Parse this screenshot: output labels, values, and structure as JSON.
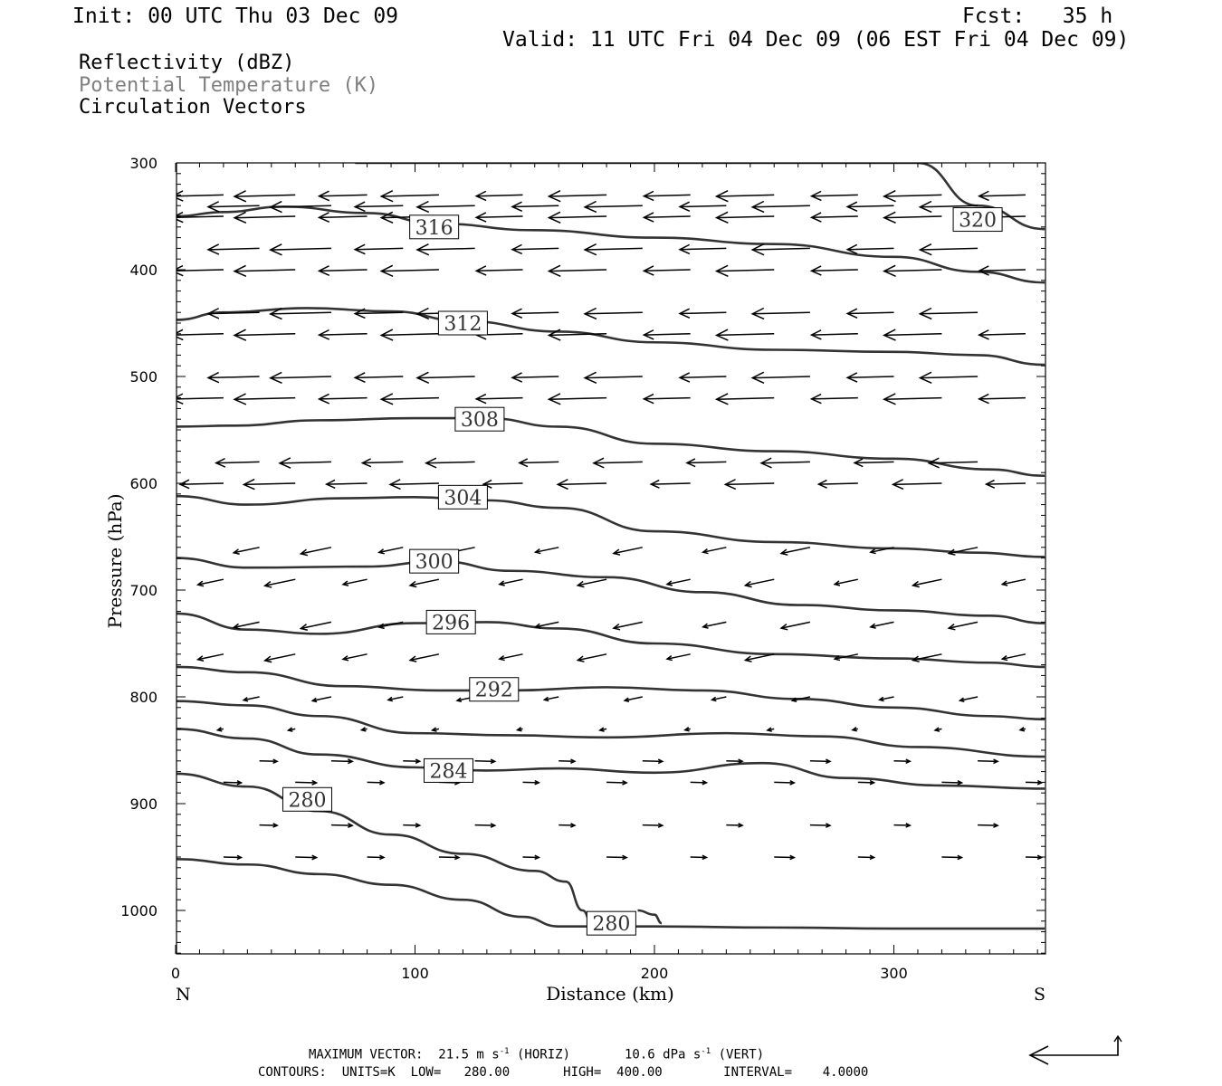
{
  "header": {
    "init": "Init: 00 UTC Thu 03 Dec 09",
    "fcst": "Fcst:   35 h",
    "valid": "Valid: 11 UTC Fri 04 Dec 09 (06 EST Fri 04 Dec 09)"
  },
  "legend": {
    "reflectivity": "Reflectivity (dBZ)",
    "theta": "Potential Temperature (K)",
    "vectors": "Circulation Vectors"
  },
  "footer": {
    "max_vector_prefix": "MAXIMUM VECTOR:  21.5 m s",
    "max_vector_horiz": " (HORIZ)",
    "max_vector_vert_prefix": "10.6 dPa s",
    "max_vector_vert": " (VERT)",
    "exponent": "-1",
    "contours": "CONTOURS:  UNITS=K  LOW=   280.00       HIGH=  400.00        INTERVAL=    4.0000"
  },
  "colors": {
    "contour": "#333333",
    "axis": "#000000",
    "legend_gray": "#808080"
  },
  "chart_data": {
    "type": "line",
    "title": "Potential Temperature (K)",
    "xlabel": "Distance (km)",
    "ylabel": "Pressure (hPa)",
    "x_ticks": [
      0,
      100,
      200,
      300
    ],
    "y_ticks": [
      300,
      400,
      500,
      600,
      700,
      800,
      900,
      1000
    ],
    "xlim": [
      0,
      363
    ],
    "ylim": [
      300,
      1040
    ],
    "y_inverted": true,
    "x_end_labels": [
      "N",
      "S"
    ],
    "series": [
      {
        "name": "320",
        "label": "320",
        "label_x": 335,
        "label_y": 353,
        "x": [
          75,
          115,
          160,
          190,
          210,
          215,
          225,
          250,
          265,
          290,
          310,
          335,
          363
        ],
        "y": [
          300,
          300,
          300,
          300,
          300,
          300,
          300,
          300,
          300,
          300,
          300,
          340,
          362
        ]
      },
      {
        "name": "316 upper",
        "label": "316",
        "label_x": 108,
        "label_y": 360,
        "x": [
          0,
          20,
          45,
          80,
          110,
          150,
          200,
          250,
          300,
          335,
          363
        ],
        "y": [
          350,
          346,
          341,
          347,
          357,
          363,
          370,
          376,
          388,
          402,
          412
        ]
      },
      {
        "name": "312",
        "label": "312",
        "label_x": 120,
        "label_y": 450,
        "x": [
          0,
          20,
          55,
          90,
          120,
          160,
          200,
          250,
          300,
          335,
          363
        ],
        "y": [
          447,
          440,
          436,
          439,
          448,
          458,
          468,
          475,
          477,
          480,
          489
        ]
      },
      {
        "name": "308",
        "label": "308",
        "label_x": 127,
        "label_y": 540,
        "x": [
          0,
          25,
          60,
          100,
          130,
          160,
          200,
          250,
          300,
          340,
          363
        ],
        "y": [
          547,
          546,
          541,
          539,
          539,
          547,
          563,
          570,
          577,
          587,
          593
        ]
      },
      {
        "name": "304",
        "label": "304",
        "label_x": 120,
        "label_y": 613,
        "x": [
          0,
          30,
          70,
          100,
          130,
          160,
          200,
          250,
          300,
          335,
          363
        ],
        "y": [
          612,
          620,
          614,
          613,
          616,
          623,
          645,
          655,
          661,
          665,
          669
        ]
      },
      {
        "name": "300",
        "label": "300",
        "label_x": 108,
        "label_y": 673,
        "x": [
          0,
          30,
          80,
          110,
          140,
          180,
          220,
          260,
          300,
          340,
          363
        ],
        "y": [
          670,
          679,
          678,
          673,
          682,
          688,
          702,
          714,
          719,
          724,
          731
        ]
      },
      {
        "name": "296",
        "label": "296",
        "label_x": 115,
        "label_y": 730,
        "x": [
          0,
          30,
          60,
          100,
          130,
          160,
          200,
          250,
          300,
          340,
          363
        ],
        "y": [
          722,
          737,
          741,
          731,
          730,
          736,
          750,
          760,
          764,
          768,
          772
        ]
      },
      {
        "name": "292",
        "label": "292",
        "label_x": 133,
        "label_y": 793,
        "x": [
          0,
          30,
          70,
          110,
          140,
          180,
          220,
          260,
          300,
          340,
          363
        ],
        "y": [
          772,
          777,
          790,
          794,
          794,
          791,
          794,
          802,
          810,
          818,
          821
        ]
      },
      {
        "name": "288",
        "label": "",
        "x": [
          0,
          30,
          60,
          100,
          140,
          180,
          230,
          270,
          310,
          363
        ],
        "y": [
          804,
          808,
          818,
          834,
          836,
          838,
          834,
          837,
          847,
          856
        ]
      },
      {
        "name": "284",
        "label": "284",
        "label_x": 114,
        "label_y": 869,
        "x": [
          0,
          30,
          60,
          100,
          130,
          160,
          200,
          245,
          280,
          320,
          363
        ],
        "y": [
          830,
          839,
          854,
          866,
          869,
          867,
          871,
          862,
          876,
          883,
          886
        ]
      },
      {
        "name": "280 upper",
        "label": "280",
        "label_x": 55,
        "label_y": 896,
        "x": [
          0,
          30,
          60,
          90,
          120,
          150,
          163,
          170,
          175
        ],
        "y": [
          872,
          884,
          907,
          929,
          947,
          963,
          973,
          1000,
          1020
        ]
      },
      {
        "name": "280 pocket",
        "label": "",
        "x": [
          193,
          200,
          203
        ],
        "y": [
          1000,
          1004,
          1012
        ]
      },
      {
        "name": "280 lower",
        "label": "280",
        "label_x": 182,
        "label_y": 1012,
        "x": [
          0,
          30,
          60,
          90,
          120,
          145,
          160,
          200,
          250,
          300,
          363
        ],
        "y": [
          952,
          957,
          966,
          976,
          990,
          1006,
          1015,
          1015,
          1016,
          1017,
          1017
        ]
      }
    ],
    "vector_rows_hpa": [
      330,
      340,
      350,
      380,
      400,
      440,
      460,
      500,
      520,
      580,
      600,
      660,
      690,
      730,
      760,
      800,
      830,
      860,
      880,
      920,
      950
    ]
  }
}
